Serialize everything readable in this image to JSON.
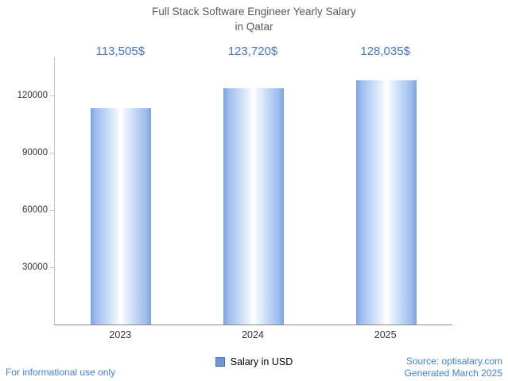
{
  "title": {
    "line1": "Full Stack Software Engineer Yearly Salary",
    "line2": "in Qatar"
  },
  "chart_data": {
    "type": "bar",
    "title": "Full Stack Software Engineer Yearly Salary in Qatar",
    "categories": [
      "2023",
      "2024",
      "2025"
    ],
    "values": [
      113505,
      123720,
      128035
    ],
    "value_labels": [
      "113,505$",
      "123,720$",
      "128,035$"
    ],
    "series_name": "Salary in USD",
    "xlabel": "",
    "ylabel": "",
    "ylim": [
      0,
      140000
    ],
    "yticks": [
      30000,
      60000,
      90000,
      120000
    ],
    "grid": false,
    "legend_position": "bottom",
    "bar_color_edge": "#7ba3e0",
    "bar_color_center": "#ffffff"
  },
  "legend": {
    "label": "Salary in USD",
    "swatch_color": "#6d96d8"
  },
  "footer": {
    "left": "For informational use only",
    "source": "Source: optisalary.com",
    "generated": "Generated March 2025"
  },
  "colors": {
    "title_text": "#595959",
    "value_label": "#4376c9",
    "link_text": "#4080d8",
    "axis_line": "#8a8a8a"
  }
}
